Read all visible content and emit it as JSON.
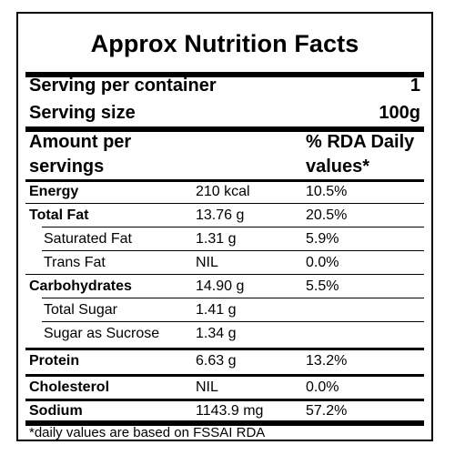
{
  "title": "Approx Nutrition Facts",
  "serving": {
    "per_container_label": "Serving per container",
    "per_container_value": "1",
    "size_label": "Serving size",
    "size_value": "100g"
  },
  "header": {
    "amount_line1": "Amount per",
    "amount_line2": "servings",
    "rda_line1": "% RDA Daily",
    "rda_line2": "values*"
  },
  "rows": [
    {
      "name": "Energy",
      "amount": "210 kcal",
      "rda": "10.5%"
    },
    {
      "name": "Total Fat",
      "amount": "13.76 g",
      "rda": "20.5%"
    },
    {
      "name": "Saturated Fat",
      "amount": "1.31 g",
      "rda": "5.9%"
    },
    {
      "name": "Trans Fat",
      "amount": "NIL",
      "rda": "0.0%"
    },
    {
      "name": "Carbohydrates",
      "amount": "14.90 g",
      "rda": "5.5%"
    },
    {
      "name": "Total Sugar",
      "amount": "1.41 g",
      "rda": ""
    },
    {
      "name": "Sugar as Sucrose",
      "amount": "1.34 g",
      "rda": ""
    },
    {
      "name": "Protein",
      "amount": "6.63 g",
      "rda": "13.2%"
    },
    {
      "name": "Cholesterol",
      "amount": "NIL",
      "rda": "0.0%"
    },
    {
      "name": "Sodium",
      "amount": "1143.9 mg",
      "rda": "57.2%"
    }
  ],
  "footnote": "*daily values are based on FSSAI RDA"
}
